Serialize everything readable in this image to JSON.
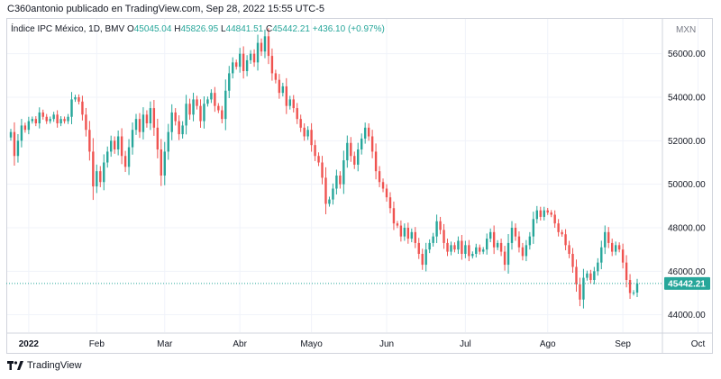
{
  "header": {
    "text": "C360antonio publicado en TradingView.com, Sep 28, 2022 15:55 UTC-5"
  },
  "legend": {
    "symbol": "Índice IPC México, 1D, BMV",
    "open_label": "O",
    "open_value": "45045.04",
    "high_label": "H",
    "high_value": "45826.95",
    "low_label": "L",
    "low_value": "44841.51",
    "close_label": "C",
    "close_value": "45442.21",
    "change": "+436.10 (+0.97%)"
  },
  "footer": {
    "brand": "TradingView",
    "logo_icon": "tradingview-logo-icon"
  },
  "colors": {
    "up": "#26a69a",
    "down": "#ef5350",
    "grid": "#f0f3fa",
    "last_price": "#26a69a"
  },
  "chart_data": {
    "type": "candlestick",
    "currency": "MXN",
    "ylim": [
      43200,
      57600
    ],
    "y_ticks": [
      "56000.00",
      "54000.00",
      "52000.00",
      "50000.00",
      "48000.00",
      "46000.00",
      "44000.00"
    ],
    "x_ticks": [
      "2022",
      "Feb",
      "Mar",
      "Abr",
      "Mayo",
      "Jun",
      "Jul",
      "Ago",
      "Sep",
      "Oct"
    ],
    "last_price_label": "45442.21",
    "last_price": 45442.21,
    "grid": true,
    "closes": [
      52400,
      51300,
      52000,
      52700,
      52500,
      52900,
      53000,
      52800,
      53300,
      53100,
      52900,
      53000,
      53200,
      52800,
      53000,
      52900,
      53100,
      53900,
      54000,
      53800,
      53200,
      52500,
      51500,
      49900,
      50600,
      50100,
      51000,
      51500,
      52000,
      51600,
      52200,
      51300,
      50800,
      51700,
      52500,
      53000,
      52400,
      53200,
      52800,
      53500,
      52600,
      51600,
      50400,
      51500,
      52400,
      53300,
      52900,
      52300,
      52700,
      53700,
      53200,
      53900,
      53600,
      52900,
      53700,
      53900,
      54200,
      53600,
      53400,
      53000,
      54300,
      55100,
      55600,
      55400,
      56000,
      55200,
      55700,
      56000,
      55600,
      56500,
      56100,
      56800,
      55900,
      55100,
      54800,
      54200,
      54500,
      53600,
      53900,
      53500,
      53000,
      52600,
      52200,
      52500,
      51800,
      51300,
      51000,
      50300,
      49100,
      49300,
      49800,
      50400,
      50000,
      51100,
      51900,
      51300,
      50900,
      51600,
      52100,
      52600,
      52200,
      51500,
      50600,
      50100,
      49800,
      49400,
      48900,
      48200,
      48100,
      47600,
      48000,
      47500,
      47800,
      47300,
      46800,
      46300,
      47000,
      47300,
      47600,
      48300,
      47900,
      47300,
      46900,
      47200,
      47000,
      47400,
      46800,
      47200,
      46700,
      46800,
      47100,
      46900,
      47000,
      47500,
      47800,
      47100,
      47300,
      46900,
      46300,
      47300,
      48000,
      47600,
      47100,
      46700,
      47200,
      47600,
      48400,
      48800,
      48500,
      48800,
      48700,
      48600,
      48200,
      47800,
      47700,
      47200,
      46800,
      46200,
      45400,
      44700,
      45700,
      45900,
      45600,
      46000,
      46400,
      47100,
      47800,
      47300,
      46900,
      47200,
      47000,
      46400,
      45600,
      45000,
      45020,
      45442
    ]
  }
}
